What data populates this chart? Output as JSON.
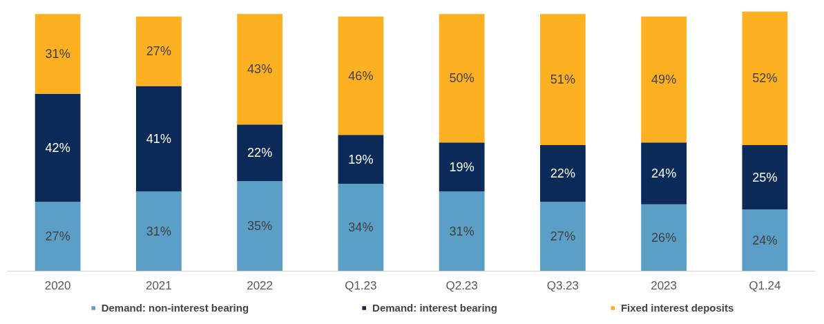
{
  "chart_data": {
    "type": "bar",
    "stacked": true,
    "data_labels": true,
    "grid": false,
    "legend": "bottom",
    "tick_labels": "x",
    "categories": [
      "2020",
      "2021",
      "2022",
      "Q1.23",
      "Q2.23",
      "Q3.23",
      "2023",
      "Q1.24"
    ],
    "series": [
      {
        "name": "Demand: non-interest bearing",
        "color": "#5b9fc6",
        "values": [
          27,
          31,
          35,
          34,
          31,
          27,
          26,
          24
        ],
        "value_labels": [
          "27%",
          "31%",
          "35%",
          "34%",
          "31%",
          "27%",
          "26%",
          "24%"
        ]
      },
      {
        "name": "Demand: interest bearing",
        "color": "#0b2a57",
        "values": [
          42,
          41,
          22,
          19,
          19,
          22,
          24,
          25
        ],
        "value_labels": [
          "42%",
          "41%",
          "22%",
          "19%",
          "19%",
          "22%",
          "24%",
          "25%"
        ]
      },
      {
        "name": "Fixed interest deposits",
        "color": "#fdb022",
        "values": [
          31,
          27,
          43,
          46,
          50,
          51,
          49,
          52
        ],
        "value_labels": [
          "31%",
          "27%",
          "43%",
          "46%",
          "50%",
          "51%",
          "49%",
          "52%"
        ]
      }
    ]
  }
}
